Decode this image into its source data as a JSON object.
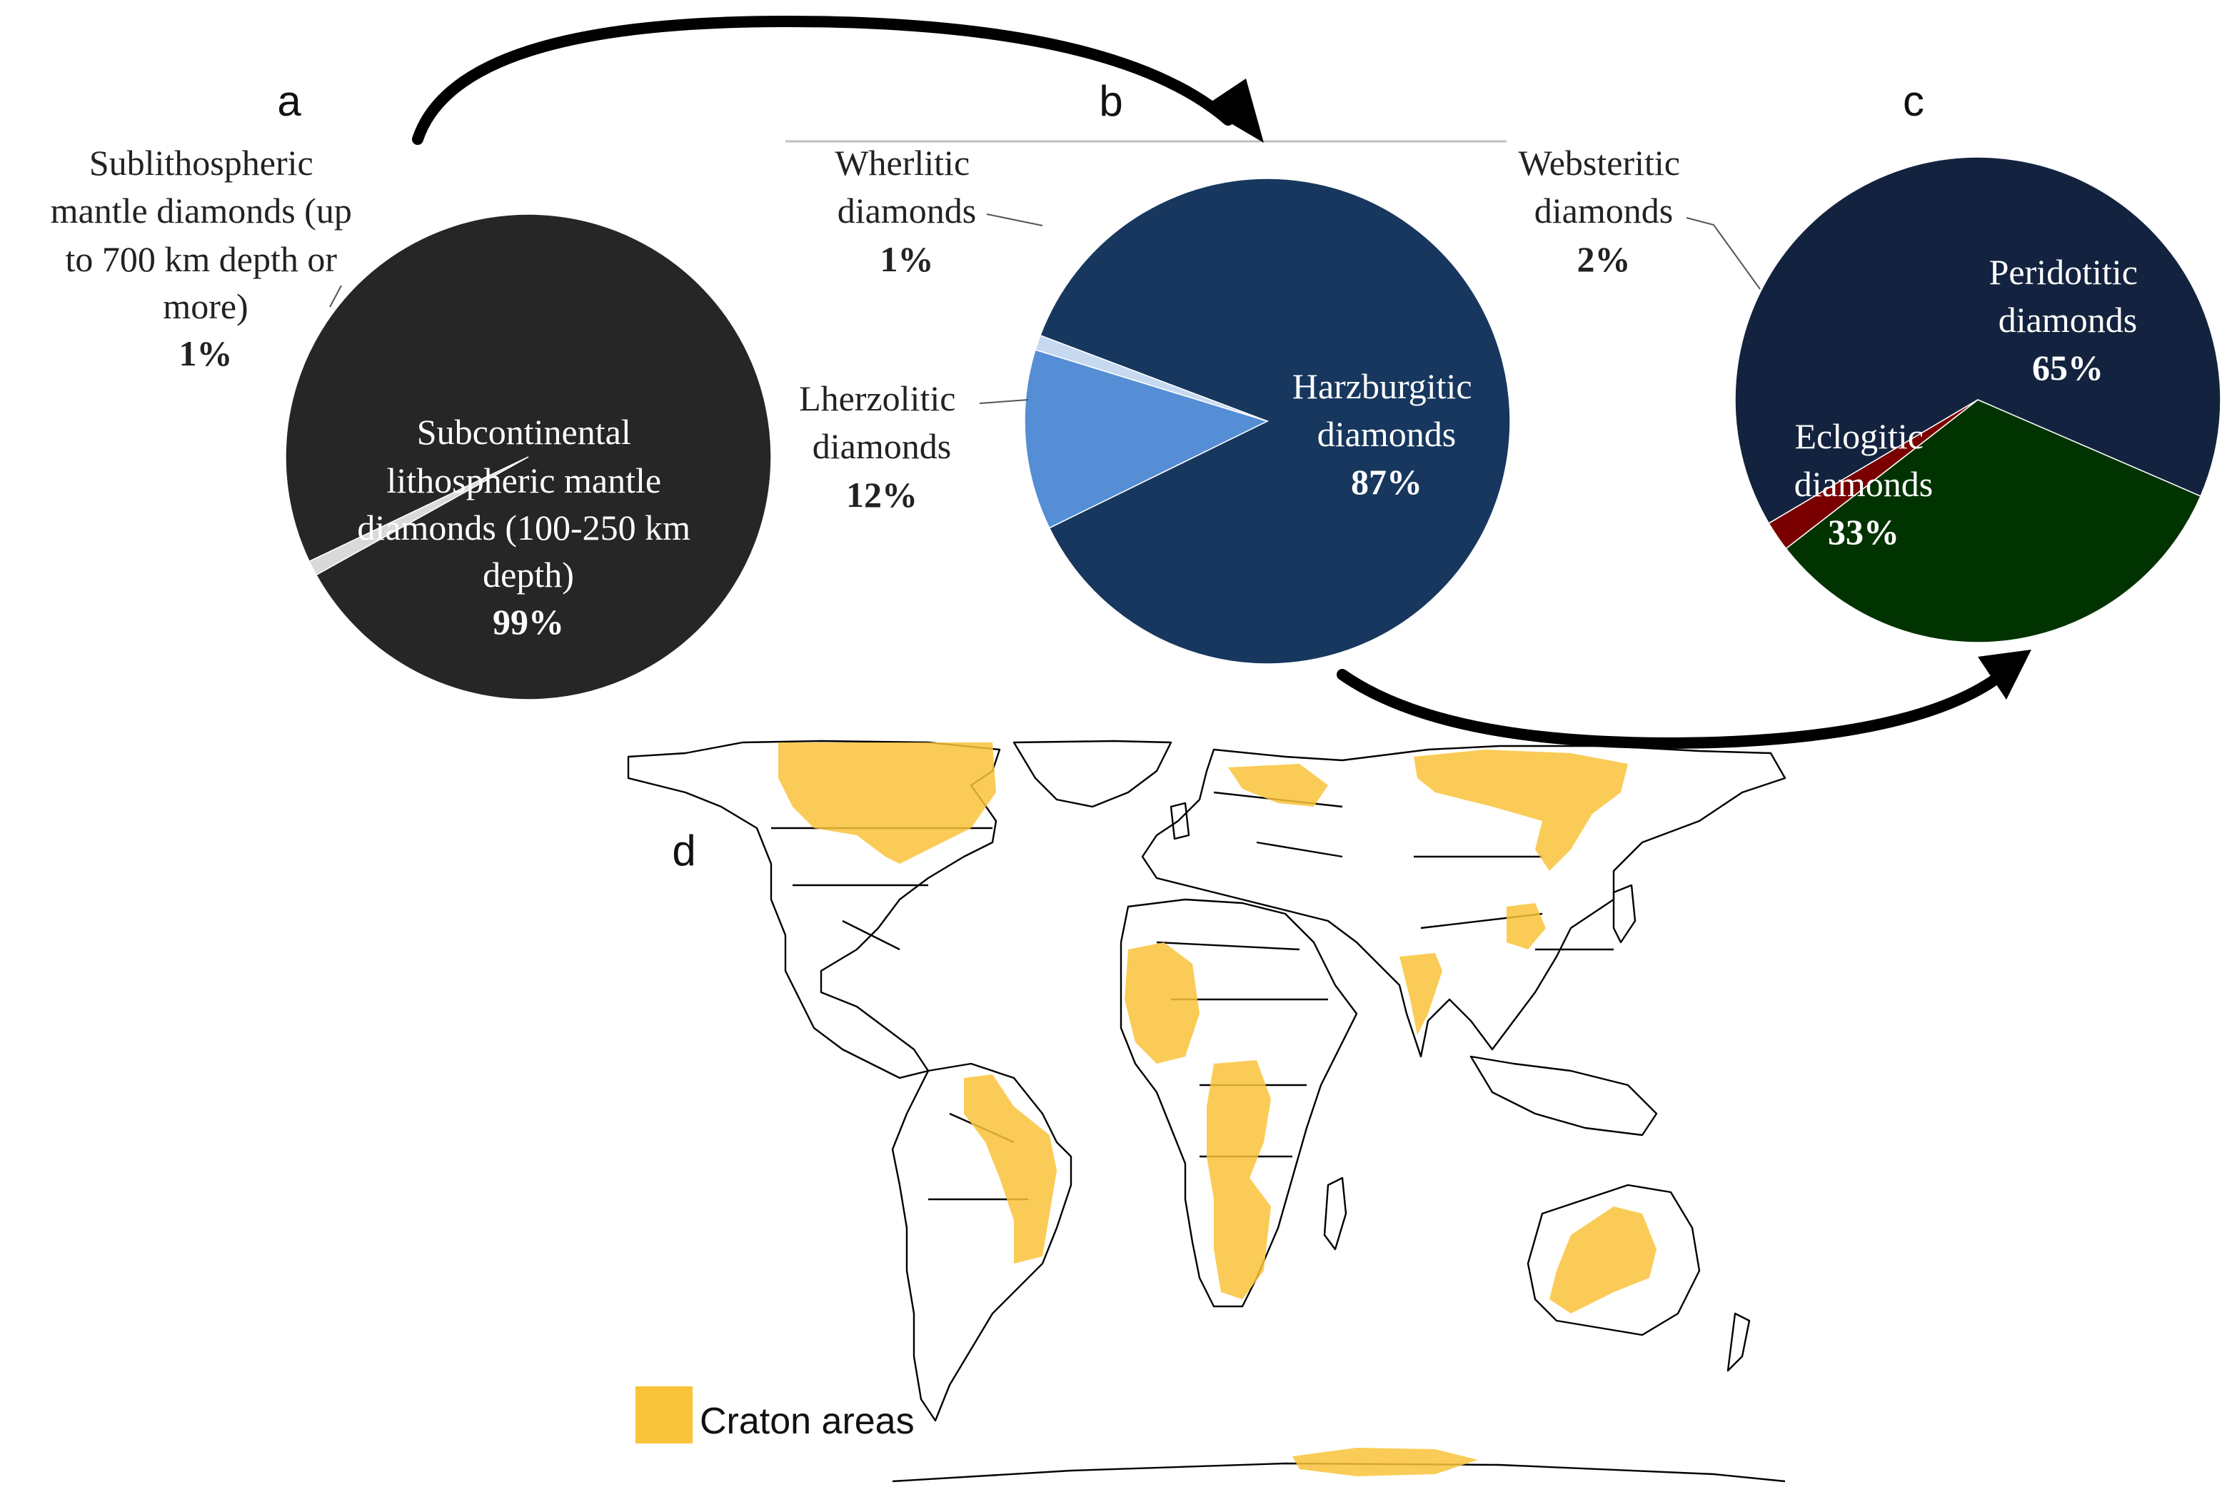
{
  "panels": {
    "a": "a",
    "b": "b",
    "c": "c",
    "d": "d"
  },
  "chart_data": [
    {
      "type": "pie",
      "panel": "a",
      "slices": [
        {
          "label": [
            "Subcontinental",
            "lithospheric mantle",
            "diamonds (100-250 km",
            "depth)"
          ],
          "value": 99,
          "value_label": "99%",
          "color": "#262626"
        },
        {
          "label": [
            "Sublithospheric",
            "mantle diamonds (up",
            "to 700 km depth or",
            "more)"
          ],
          "value": 1,
          "value_label": "1%",
          "color": "#d9d9d9"
        }
      ]
    },
    {
      "type": "pie",
      "panel": "b",
      "slices": [
        {
          "label": [
            "Harzburgitic",
            "diamonds"
          ],
          "value": 87,
          "value_label": "87%",
          "color": "#17375e"
        },
        {
          "label": [
            "Lherzolitic",
            "diamonds"
          ],
          "value": 12,
          "value_label": "12%",
          "color": "#558ed5"
        },
        {
          "label": [
            "Wherlitic",
            "diamonds"
          ],
          "value": 1,
          "value_label": "1%",
          "color": "#c6d9f1"
        }
      ]
    },
    {
      "type": "pie",
      "panel": "c",
      "slices": [
        {
          "label": [
            "Peridotitic",
            "diamonds"
          ],
          "value": 65,
          "value_label": "65%",
          "color": "#13233f"
        },
        {
          "label": [
            "Eclogitic",
            "diamonds"
          ],
          "value": 33,
          "value_label": "33%",
          "color": "#003300"
        },
        {
          "label": [
            "Websteritic",
            "diamonds"
          ],
          "value": 2,
          "value_label": "2%",
          "color": "#7a0000"
        }
      ]
    }
  ],
  "map": {
    "legend_label": "Craton areas",
    "craton_color": "#f9c33a"
  }
}
